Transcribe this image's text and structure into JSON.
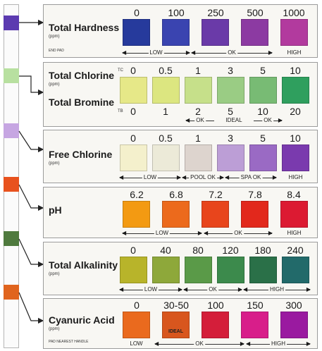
{
  "strip_pads": [
    {
      "name": "total-hardness",
      "color": "#5b3ab0"
    },
    {
      "name": "chlorine-bromine",
      "color": "#b8e0a0"
    },
    {
      "name": "free-chlorine",
      "color": "#c6a6e2"
    },
    {
      "name": "ph",
      "color": "#e8521e"
    },
    {
      "name": "total-alkalinity",
      "color": "#4f7a3e"
    },
    {
      "name": "cyanuric-acid",
      "color": "#e0641e"
    }
  ],
  "tests": [
    {
      "title": "Total Hardness",
      "unit": "(ppm)",
      "note": "END PAD",
      "values": [
        "0",
        "100",
        "250",
        "500",
        "1000"
      ],
      "colors": [
        "#263a9c",
        "#3a44b0",
        "#6a3aa8",
        "#8c3aa2",
        "#b23a9e"
      ],
      "ranges": [
        {
          "label": "LOW",
          "arrows": "both"
        },
        {
          "label": "OK",
          "arrows": "both"
        },
        {
          "label": "HIGH",
          "arrows": "none"
        }
      ]
    },
    {
      "title": "Total Chlorine",
      "unit": "(ppm)",
      "title2": "Total Bromine",
      "tag_tc": "TC",
      "tag_tb": "TB",
      "values": [
        "0",
        "0.5",
        "1",
        "3",
        "5",
        "10"
      ],
      "values2": [
        "0",
        "1",
        "2",
        "5",
        "10",
        "20"
      ],
      "colors": [
        "#e6e888",
        "#dce680",
        "#c6e08a",
        "#9acc84",
        "#78bb74",
        "#2f9f5e"
      ],
      "ranges": [
        {
          "label": "OK",
          "arrows": "left"
        },
        {
          "label": "IDEAL",
          "arrows": "none"
        },
        {
          "label": "OK",
          "arrows": "right"
        }
      ]
    },
    {
      "title": "Free Chlorine",
      "unit": "(ppm)",
      "values": [
        "0",
        "0.5",
        "1",
        "3",
        "5",
        "10"
      ],
      "colors": [
        "#f4f0cc",
        "#ecead8",
        "#ddd4ce",
        "#bc9ed6",
        "#9a6ac4",
        "#7a3aae"
      ],
      "ranges": [
        {
          "label": "LOW",
          "arrows": "both"
        },
        {
          "label": "POOL OK",
          "arrows": "both"
        },
        {
          "label": "SPA OK",
          "arrows": "both"
        },
        {
          "label": "HIGH",
          "arrows": "none"
        }
      ]
    },
    {
      "title": "pH",
      "values": [
        "6.2",
        "6.8",
        "7.2",
        "7.8",
        "8.4"
      ],
      "colors": [
        "#f39a12",
        "#ec6a1c",
        "#e8451c",
        "#e2281c",
        "#dc1a32"
      ],
      "ranges": [
        {
          "label": "LOW",
          "arrows": "both"
        },
        {
          "label": "OK",
          "arrows": "both"
        },
        {
          "label": "HIGH",
          "arrows": "none"
        }
      ]
    },
    {
      "title": "Total Alkalinity",
      "unit": "(ppm)",
      "values": [
        "0",
        "40",
        "80",
        "120",
        "180",
        "240"
      ],
      "colors": [
        "#b8b42a",
        "#8ea83a",
        "#5a9a48",
        "#3c8a4c",
        "#2a7048",
        "#226a6a"
      ],
      "ranges": [
        {
          "label": "LOW",
          "arrows": "both"
        },
        {
          "label": "OK",
          "arrows": "both"
        },
        {
          "label": "HIGH",
          "arrows": "both"
        }
      ]
    },
    {
      "title": "Cyanuric Acid",
      "unit": "(ppm)",
      "note": "PAD NEAREST HANDLE",
      "values": [
        "0",
        "30-50",
        "100",
        "150",
        "300"
      ],
      "colors": [
        "#ea6a1e",
        "#d8561e",
        "#d41e3a",
        "#d81e8a",
        "#9a1aa0"
      ],
      "ideal_chip_label": "IDEAL",
      "ranges": [
        {
          "label": "LOW",
          "arrows": "none"
        },
        {
          "label": "OK",
          "arrows": "both"
        },
        {
          "label": "HIGH",
          "arrows": "both"
        }
      ]
    }
  ]
}
